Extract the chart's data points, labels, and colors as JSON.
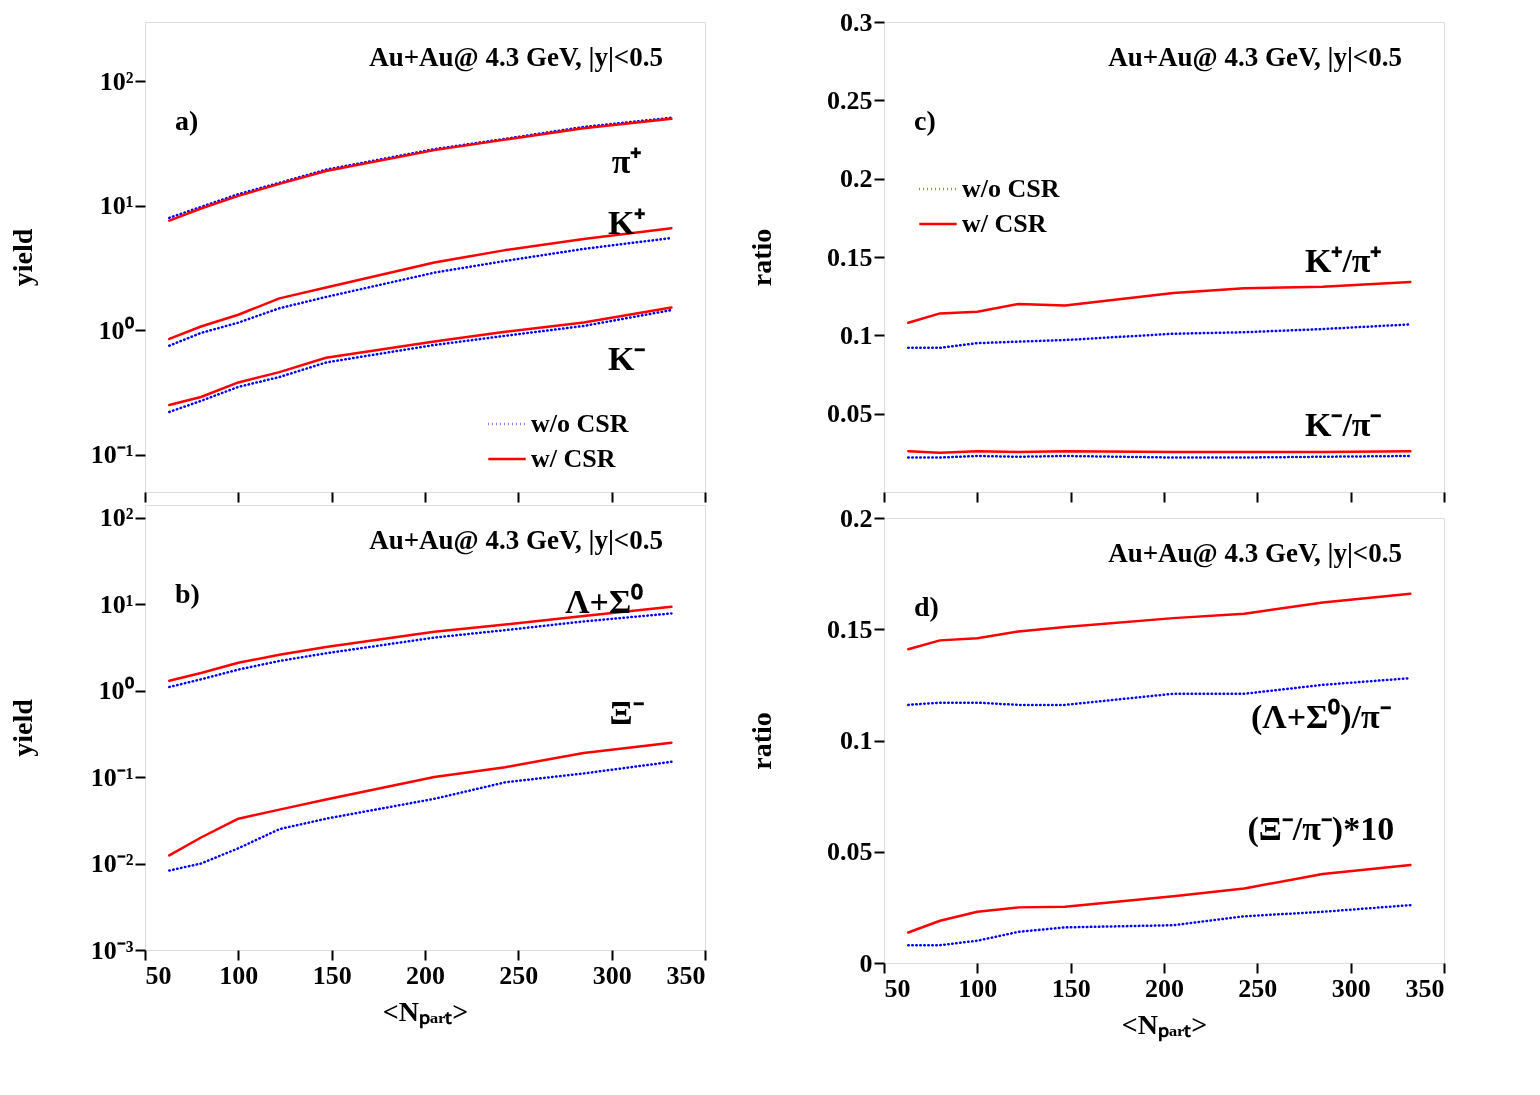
{
  "chart_data": [
    {
      "type": "line",
      "ylabel": "yield",
      "log": "y",
      "legend": "bottom right",
      "tick_labels": "y",
      "annotations": [
        "Au+Au@ 4.3 GeV, |y|<0.5",
        "a)",
        "π⁺",
        "K⁺",
        "K⁻"
      ],
      "x": [
        63,
        80,
        100,
        122,
        147,
        205,
        243,
        285,
        332
      ],
      "series": [
        {
          "name": "w/o CSR",
          "color": "#0000ff",
          "line_style": "dotted",
          "values": [
            8,
            9.8,
            12.4,
            15.3,
            19.5,
            28.5,
            34.5,
            43,
            51
          ]
        },
        {
          "name": "w/  CSR",
          "color": "#ff0000",
          "line_style": "solid",
          "values": [
            7.6,
            9.5,
            12,
            15,
            19,
            28,
            34,
            42,
            50
          ]
        },
        {
          "color": "#0000ff",
          "line_style": "dotted",
          "values": [
            0.75,
            0.95,
            1.15,
            1.5,
            1.85,
            2.9,
            3.6,
            4.5,
            5.5
          ]
        },
        {
          "color": "#ff0000",
          "line_style": "solid",
          "values": [
            0.85,
            1.07,
            1.33,
            1.8,
            2.2,
            3.5,
            4.4,
            5.4,
            6.6
          ]
        },
        {
          "color": "#0000ff",
          "line_style": "dotted",
          "values": [
            0.22,
            0.27,
            0.35,
            0.42,
            0.55,
            0.76,
            0.9,
            1.08,
            1.45
          ]
        },
        {
          "color": "#ff0000",
          "line_style": "solid",
          "values": [
            0.25,
            0.29,
            0.38,
            0.46,
            0.6,
            0.81,
            0.97,
            1.15,
            1.52
          ]
        }
      ],
      "xlim": [
        50,
        350
      ],
      "xticks": [
        50,
        100,
        150,
        200,
        250,
        300,
        350
      ],
      "ylim": [
        0.05,
        300
      ],
      "yticks": [
        {
          "value": 0.1,
          "label": "10⁻¹"
        },
        {
          "value": 1,
          "label": "10⁰"
        },
        {
          "value": 10,
          "label": "10¹"
        },
        {
          "value": 100,
          "label": "10²"
        }
      ]
    },
    {
      "type": "line",
      "ylabel": "ratio",
      "legend": "top left",
      "tick_labels": "y",
      "annotations": [
        "Au+Au@ 4.3 GeV, |y|<0.5",
        "c)",
        "K⁺/π⁺",
        "K⁻/π⁻"
      ],
      "x": [
        63,
        80,
        100,
        122,
        147,
        205,
        243,
        285,
        332
      ],
      "series": [
        {
          "name": "w/o CSR",
          "color": "#0000ff",
          "line_style": "dotted",
          "values": [
            0.092,
            0.092,
            0.095,
            0.096,
            0.097,
            0.101,
            0.102,
            0.104,
            0.107
          ]
        },
        {
          "name": "w/  CSR",
          "color": "#ff0000",
          "line_style": "solid",
          "values": [
            0.108,
            0.114,
            0.115,
            0.12,
            0.119,
            0.127,
            0.13,
            0.131,
            0.134
          ]
        },
        {
          "color": "#0000ff",
          "line_style": "dotted",
          "values": [
            0.022,
            0.022,
            0.023,
            0.0225,
            0.023,
            0.022,
            0.022,
            0.0225,
            0.023
          ]
        },
        {
          "color": "#ff0000",
          "line_style": "solid",
          "values": [
            0.026,
            0.025,
            0.026,
            0.0255,
            0.026,
            0.0255,
            0.0255,
            0.0255,
            0.026
          ]
        }
      ],
      "xlim": [
        50,
        350
      ],
      "xticks": [
        50,
        100,
        150,
        200,
        250,
        300,
        350
      ],
      "ylim": [
        0,
        0.3
      ],
      "yticks": [
        0.05,
        0.1,
        0.15,
        0.2,
        0.25,
        0.3
      ]
    },
    {
      "type": "line",
      "ylabel": "yield",
      "xlabel": "<Nₚₐᵣₜ>",
      "log": "y",
      "annotations": [
        "Au+Au@ 4.3 GeV, |y|<0.5",
        "b)",
        "Λ+Σ⁰",
        "Ξ⁻"
      ],
      "x": [
        63,
        80,
        100,
        122,
        147,
        205,
        243,
        285,
        332
      ],
      "series": [
        {
          "color": "#0000ff",
          "line_style": "dotted",
          "values": [
            1.1,
            1.35,
            1.75,
            2.2,
            2.7,
            4.1,
            5.0,
            6.3,
            7.8
          ]
        },
        {
          "color": "#ff0000",
          "line_style": "solid",
          "values": [
            1.3,
            1.6,
            2.1,
            2.6,
            3.2,
            4.8,
            5.8,
            7.3,
            9.3
          ]
        },
        {
          "color": "#0000ff",
          "line_style": "dotted",
          "values": [
            0.0083,
            0.01,
            0.015,
            0.025,
            0.033,
            0.056,
            0.087,
            0.11,
            0.15
          ]
        },
        {
          "color": "#ff0000",
          "line_style": "solid",
          "values": [
            0.0124,
            0.02,
            0.033,
            0.042,
            0.055,
            0.1,
            0.13,
            0.19,
            0.25
          ]
        }
      ],
      "xlim": [
        50,
        350
      ],
      "xticks": [
        50,
        100,
        150,
        200,
        250,
        300,
        350
      ],
      "ylim": [
        0.001,
        140
      ],
      "yticks": [
        {
          "value": 0.001,
          "label": "10⁻³"
        },
        {
          "value": 0.01,
          "label": "10⁻²"
        },
        {
          "value": 0.1,
          "label": "10⁻¹"
        },
        {
          "value": 1,
          "label": "10⁰"
        },
        {
          "value": 10,
          "label": "10¹"
        },
        {
          "value": 100,
          "label": "10²"
        }
      ]
    },
    {
      "type": "line",
      "ylabel": "ratio",
      "xlabel": "<Nₚₐᵣₜ>",
      "annotations": [
        "Au+Au@ 4.3 GeV, |y|<0.5",
        "d)",
        "(Λ+Σ⁰)/π⁻",
        "(Ξ⁻/π⁻)*10"
      ],
      "x": [
        63,
        80,
        100,
        122,
        147,
        205,
        243,
        285,
        332
      ],
      "series": [
        {
          "color": "#0000ff",
          "line_style": "dotted",
          "values": [
            0.116,
            0.117,
            0.117,
            0.116,
            0.116,
            0.121,
            0.121,
            0.125,
            0.128
          ]
        },
        {
          "color": "#ff0000",
          "line_style": "solid",
          "values": [
            0.141,
            0.145,
            0.146,
            0.149,
            0.151,
            0.155,
            0.157,
            0.162,
            0.166
          ]
        },
        {
          "color": "#0000ff",
          "line_style": "dotted",
          "values": [
            0.008,
            0.008,
            0.01,
            0.014,
            0.016,
            0.017,
            0.021,
            0.023,
            0.026
          ]
        },
        {
          "color": "#ff0000",
          "line_style": "solid",
          "values": [
            0.0137,
            0.019,
            0.023,
            0.025,
            0.0253,
            0.03,
            0.0335,
            0.04,
            0.044
          ]
        }
      ],
      "xlim": [
        50,
        350
      ],
      "xticks": [
        50,
        100,
        150,
        200,
        250,
        300,
        350
      ],
      "ylim": [
        0,
        0.2
      ],
      "yticks": [
        0,
        0.05,
        0.1,
        0.15,
        0.2
      ]
    }
  ]
}
